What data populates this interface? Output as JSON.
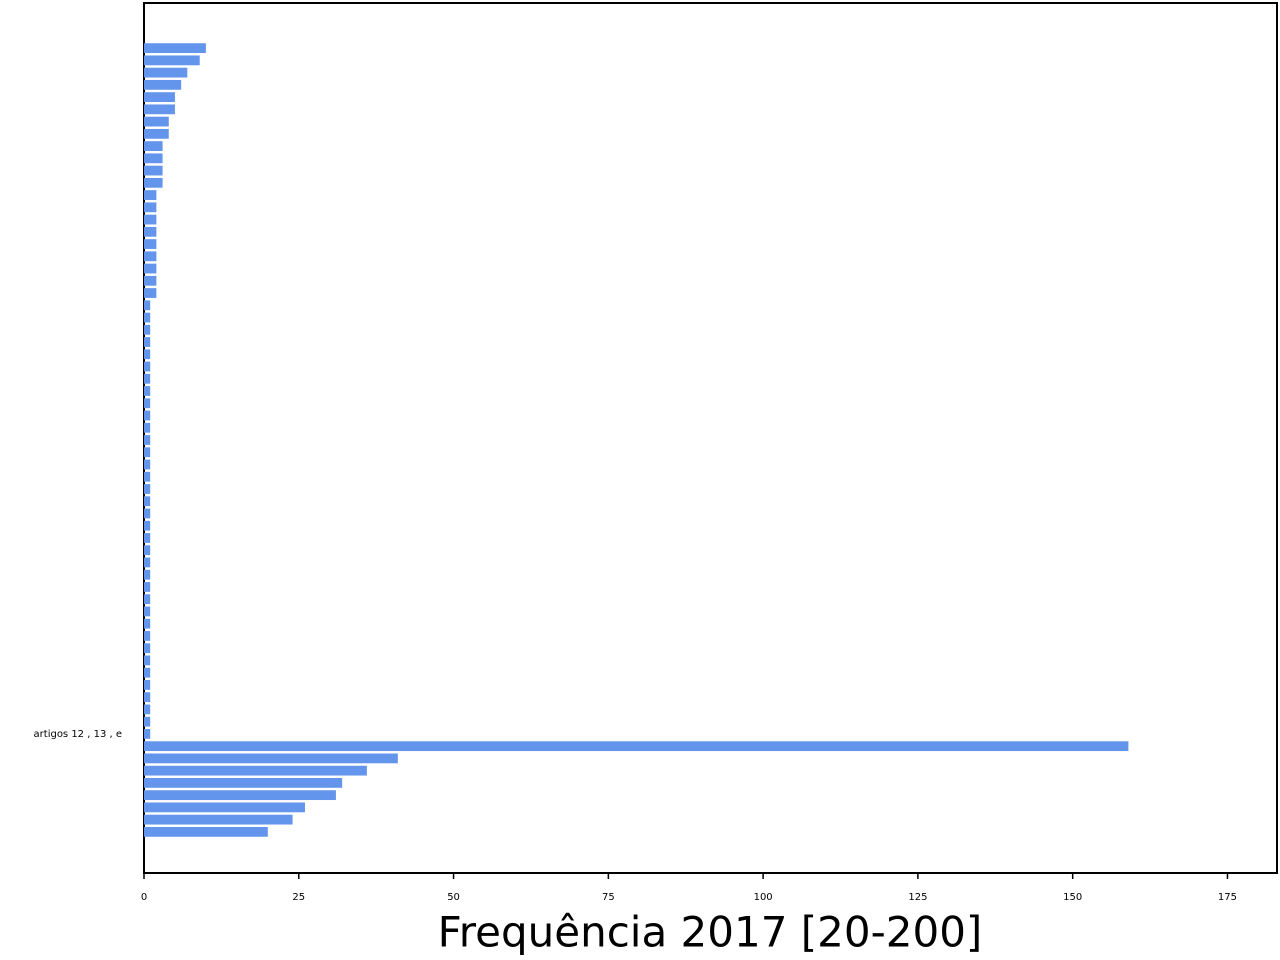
{
  "chart_data": {
    "type": "barh",
    "xlabel": "Frequência 2017 [20-200]",
    "color": "#6495ed",
    "categories": [
      null,
      null,
      null,
      null,
      null,
      null,
      null,
      null,
      null,
      null,
      null,
      null,
      null,
      null,
      null,
      null,
      null,
      null,
      null,
      null,
      null,
      null,
      null,
      null,
      null,
      null,
      null,
      null,
      null,
      null,
      null,
      null,
      null,
      null,
      null,
      null,
      null,
      null,
      null,
      null,
      null,
      null,
      null,
      null,
      null,
      null,
      null,
      null,
      null,
      null,
      null,
      null,
      null,
      null,
      null,
      null,
      "artigos 12 , 13 , e",
      null,
      null,
      null,
      null,
      null,
      null,
      null,
      null
    ],
    "values": [
      10,
      9,
      7,
      6,
      5,
      5,
      4,
      4,
      3,
      3,
      3,
      3,
      2,
      2,
      2,
      2,
      2,
      2,
      2,
      2,
      2,
      1,
      1,
      1,
      1,
      1,
      1,
      1,
      1,
      1,
      1,
      1,
      1,
      1,
      1,
      1,
      1,
      1,
      1,
      1,
      1,
      1,
      1,
      1,
      1,
      1,
      1,
      1,
      1,
      1,
      1,
      1,
      1,
      1,
      1,
      1,
      1,
      159,
      41,
      36,
      32,
      31,
      26,
      24,
      20
    ],
    "xlim": [
      0,
      183
    ],
    "xticks": [
      0,
      25,
      50,
      75,
      100,
      125,
      150,
      175
    ]
  }
}
